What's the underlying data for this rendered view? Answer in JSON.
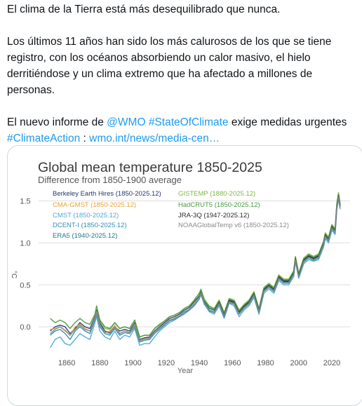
{
  "tweet": {
    "line1": "El clima de la Tierra está más desequilibrado que nunca.",
    "para2_line1": "Los últimos 11 años han sido los más calurosos de los que se tiene",
    "para2_line2": "registro, con los océanos absorbiendo un calor masivo, el hielo",
    "para2_line3": "derritiéndose y un clima extremo que ha afectado a millones de",
    "para2_line4": "personas.",
    "para3_prefix": "El nuevo informe de ",
    "mention": "@WMO",
    "hashtag1": "#StateOfClimate",
    "para3_suffix": " exige medidas urgentes",
    "hashtag2": "#ClimateAction",
    "separator": " : ",
    "url": "wmo.int/news/media-cen…",
    "link_color": "#1d9bf0"
  },
  "chart_data": {
    "type": "line",
    "title": "Global mean temperature 1850-2025",
    "subtitle": "Difference from 1850-1900 average",
    "xlabel": "Year",
    "ylabel": "°C",
    "xlim": [
      1843,
      2031
    ],
    "ylim": [
      -0.35,
      1.68
    ],
    "x_ticks": [
      1860,
      1880,
      1900,
      1920,
      1940,
      1960,
      1980,
      2000,
      2020
    ],
    "x_tick_labels": [
      "1860",
      "1880",
      "1900",
      "1920",
      "1940",
      "1960",
      "1980",
      "2000",
      "2020"
    ],
    "y_ticks": [
      0.0,
      0.5,
      1.0,
      1.5
    ],
    "y_tick_labels": [
      "0.0",
      "0.5",
      "1.0",
      "1.5"
    ],
    "grid": true,
    "legend_position": "top-left",
    "x": [
      1850,
      1853,
      1856,
      1859,
      1862,
      1865,
      1868,
      1871,
      1874,
      1877,
      1878,
      1880,
      1883,
      1886,
      1889,
      1892,
      1895,
      1898,
      1901,
      1904,
      1907,
      1910,
      1913,
      1916,
      1919,
      1922,
      1925,
      1928,
      1931,
      1934,
      1937,
      1940,
      1941,
      1943,
      1946,
      1949,
      1952,
      1955,
      1958,
      1961,
      1964,
      1967,
      1970,
      1973,
      1976,
      1979,
      1982,
      1985,
      1988,
      1991,
      1994,
      1997,
      1998,
      2000,
      2003,
      2006,
      2009,
      2012,
      2015,
      2016,
      2018,
      2020,
      2022,
      2023,
      2024,
      2025
    ],
    "series": [
      {
        "name": "Berkeley Earth Hires (1850-2025.12)",
        "color": "#233870",
        "values": [
          -0.05,
          0.0,
          0.02,
          0.0,
          -0.08,
          -0.02,
          0.05,
          0.0,
          -0.02,
          0.12,
          0.2,
          0.05,
          -0.05,
          -0.07,
          0.0,
          -0.05,
          -0.03,
          -0.05,
          0.05,
          -0.15,
          -0.13,
          -0.12,
          -0.05,
          0.0,
          0.05,
          0.1,
          0.12,
          0.15,
          0.2,
          0.23,
          0.3,
          0.37,
          0.42,
          0.3,
          0.22,
          0.2,
          0.3,
          0.15,
          0.32,
          0.3,
          0.18,
          0.25,
          0.3,
          0.4,
          0.2,
          0.45,
          0.5,
          0.45,
          0.6,
          0.55,
          0.55,
          0.65,
          0.82,
          0.62,
          0.8,
          0.85,
          0.82,
          0.85,
          1.0,
          1.1,
          1.05,
          1.2,
          1.15,
          1.45,
          1.58,
          1.45
        ]
      },
      {
        "name": "CMA-GMST (1850-2025.12)",
        "color": "#e6a33a",
        "values": [
          -0.03,
          -0.02,
          0.0,
          -0.05,
          -0.1,
          0.0,
          0.03,
          -0.02,
          -0.05,
          0.1,
          0.18,
          0.02,
          -0.07,
          -0.05,
          0.02,
          -0.08,
          -0.05,
          -0.07,
          0.03,
          -0.17,
          -0.15,
          -0.14,
          -0.07,
          -0.02,
          0.03,
          0.08,
          0.1,
          0.13,
          0.18,
          0.2,
          0.28,
          0.35,
          0.4,
          0.28,
          0.2,
          0.18,
          0.28,
          0.13,
          0.3,
          0.28,
          0.16,
          0.23,
          0.28,
          0.38,
          0.18,
          0.43,
          0.48,
          0.43,
          0.58,
          0.53,
          0.53,
          0.63,
          0.8,
          0.6,
          0.78,
          0.83,
          0.8,
          0.83,
          0.98,
          1.08,
          1.03,
          1.18,
          1.13,
          1.43,
          1.55,
          1.43
        ]
      },
      {
        "name": "CMST (1850-2025.12)",
        "color": "#4faad6",
        "values": [
          -0.25,
          -0.15,
          -0.12,
          -0.2,
          -0.22,
          -0.15,
          -0.08,
          -0.12,
          -0.15,
          0.05,
          0.12,
          -0.05,
          -0.12,
          -0.15,
          -0.05,
          -0.15,
          -0.1,
          -0.12,
          -0.02,
          -0.22,
          -0.2,
          -0.2,
          -0.12,
          -0.05,
          0.0,
          0.05,
          0.08,
          0.12,
          0.15,
          0.2,
          0.25,
          0.33,
          0.38,
          0.28,
          0.18,
          0.15,
          0.25,
          0.1,
          0.28,
          0.25,
          0.12,
          0.2,
          0.25,
          0.35,
          0.15,
          0.4,
          0.45,
          0.4,
          0.55,
          0.5,
          0.5,
          0.6,
          0.78,
          0.58,
          0.75,
          0.8,
          0.78,
          0.8,
          0.95,
          1.05,
          1.0,
          1.15,
          1.1,
          1.4,
          1.52,
          1.4
        ]
      },
      {
        "name": "DCENT-I (1850-2025.12)",
        "color": "#2e8fb0",
        "values": [
          -0.1,
          -0.05,
          -0.03,
          -0.08,
          -0.15,
          -0.05,
          0.0,
          -0.05,
          -0.08,
          0.08,
          0.15,
          0.0,
          -0.08,
          -0.1,
          -0.02,
          -0.1,
          -0.07,
          -0.08,
          0.0,
          -0.18,
          -0.16,
          -0.15,
          -0.08,
          -0.03,
          0.02,
          0.07,
          0.09,
          0.12,
          0.17,
          0.2,
          0.26,
          0.34,
          0.39,
          0.27,
          0.19,
          0.17,
          0.27,
          0.12,
          0.29,
          0.27,
          0.15,
          0.22,
          0.27,
          0.37,
          0.17,
          0.42,
          0.47,
          0.42,
          0.57,
          0.52,
          0.52,
          0.62,
          0.79,
          0.59,
          0.77,
          0.82,
          0.79,
          0.82,
          0.97,
          1.07,
          1.02,
          1.17,
          1.12,
          1.42,
          1.54,
          1.42
        ]
      },
      {
        "name": "ERA5 (1940-2025.12)",
        "color": "#1a7a8c",
        "values": [
          null,
          null,
          null,
          null,
          null,
          null,
          null,
          null,
          null,
          null,
          null,
          null,
          null,
          null,
          null,
          null,
          null,
          null,
          null,
          null,
          null,
          null,
          null,
          null,
          null,
          null,
          null,
          null,
          null,
          null,
          null,
          0.35,
          0.4,
          0.3,
          0.22,
          0.2,
          0.3,
          0.14,
          0.31,
          0.29,
          0.17,
          0.24,
          0.29,
          0.39,
          0.19,
          0.44,
          0.49,
          0.44,
          0.59,
          0.54,
          0.54,
          0.64,
          0.81,
          0.61,
          0.79,
          0.84,
          0.81,
          0.84,
          0.99,
          1.09,
          1.04,
          1.19,
          1.14,
          1.44,
          1.57,
          1.44
        ]
      },
      {
        "name": "GISTEMP (1880-2025.12)",
        "color": "#7fb843",
        "values": [
          null,
          null,
          null,
          null,
          null,
          null,
          null,
          null,
          null,
          null,
          null,
          0.08,
          -0.02,
          -0.03,
          0.05,
          -0.02,
          0.0,
          -0.02,
          0.08,
          -0.12,
          -0.1,
          -0.1,
          -0.02,
          0.02,
          0.07,
          0.12,
          0.14,
          0.17,
          0.22,
          0.25,
          0.32,
          0.4,
          0.45,
          0.33,
          0.25,
          0.22,
          0.32,
          0.17,
          0.34,
          0.32,
          0.2,
          0.27,
          0.32,
          0.42,
          0.22,
          0.47,
          0.52,
          0.47,
          0.62,
          0.57,
          0.57,
          0.67,
          0.84,
          0.64,
          0.82,
          0.87,
          0.84,
          0.87,
          1.02,
          1.12,
          1.07,
          1.22,
          1.17,
          1.47,
          1.6,
          1.47
        ]
      },
      {
        "name": "HadCRUT5 (1850-2025.12)",
        "color": "#4c9b42",
        "values": [
          0.1,
          0.05,
          0.08,
          0.05,
          -0.02,
          0.05,
          0.1,
          0.05,
          0.03,
          0.15,
          0.25,
          0.08,
          0.0,
          -0.02,
          0.05,
          -0.02,
          0.0,
          -0.02,
          0.08,
          -0.12,
          -0.1,
          -0.1,
          -0.02,
          0.03,
          0.07,
          0.12,
          0.14,
          0.17,
          0.22,
          0.25,
          0.32,
          0.4,
          0.44,
          0.32,
          0.24,
          0.21,
          0.31,
          0.16,
          0.33,
          0.31,
          0.19,
          0.26,
          0.31,
          0.41,
          0.21,
          0.46,
          0.51,
          0.46,
          0.61,
          0.56,
          0.56,
          0.66,
          0.83,
          0.63,
          0.81,
          0.86,
          0.83,
          0.86,
          1.01,
          1.11,
          1.06,
          1.21,
          1.16,
          1.46,
          1.58,
          1.46
        ]
      },
      {
        "name": "JRA-3Q (1947-2025.12)",
        "color": "#2b2b2b",
        "values": [
          null,
          null,
          null,
          null,
          null,
          null,
          null,
          null,
          null,
          null,
          null,
          null,
          null,
          null,
          null,
          null,
          null,
          null,
          null,
          null,
          null,
          null,
          null,
          null,
          null,
          null,
          null,
          null,
          null,
          null,
          null,
          null,
          null,
          null,
          null,
          0.19,
          0.29,
          0.14,
          0.31,
          0.29,
          0.17,
          0.24,
          0.29,
          0.39,
          0.19,
          0.44,
          0.49,
          0.44,
          0.59,
          0.54,
          0.54,
          0.64,
          0.81,
          0.61,
          0.79,
          0.84,
          0.81,
          0.84,
          0.99,
          1.09,
          1.04,
          1.19,
          1.14,
          1.44,
          1.56,
          1.44
        ]
      },
      {
        "name": "NOAAGlobalTemp v6 (1850-2025.12)",
        "color": "#8a8a8a",
        "values": [
          -0.08,
          -0.03,
          0.0,
          -0.04,
          -0.1,
          -0.03,
          0.02,
          -0.03,
          -0.05,
          0.09,
          0.17,
          0.02,
          -0.06,
          -0.08,
          0.0,
          -0.08,
          -0.05,
          -0.07,
          0.02,
          -0.16,
          -0.14,
          -0.13,
          -0.06,
          -0.01,
          0.03,
          0.08,
          0.1,
          0.13,
          0.18,
          0.21,
          0.27,
          0.35,
          0.4,
          0.28,
          0.2,
          0.18,
          0.28,
          0.13,
          0.3,
          0.28,
          0.16,
          0.23,
          0.28,
          0.38,
          0.18,
          0.43,
          0.48,
          0.43,
          0.58,
          0.53,
          0.53,
          0.63,
          0.8,
          0.6,
          0.78,
          0.83,
          0.8,
          0.83,
          0.98,
          1.08,
          1.03,
          1.18,
          1.13,
          1.43,
          1.55,
          1.43
        ]
      }
    ]
  }
}
